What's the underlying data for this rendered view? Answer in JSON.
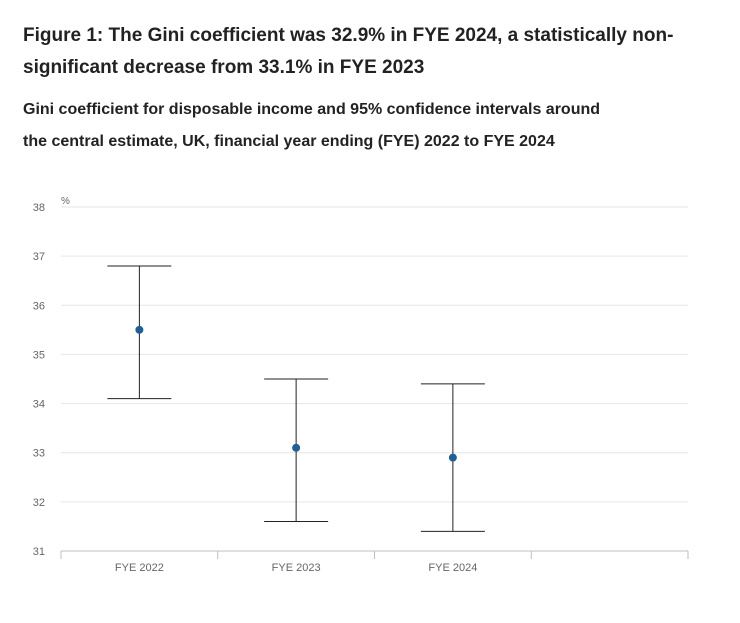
{
  "title": "Figure 1: The Gini coefficient was 32.9% in FYE 2024, a statistically non-significant decrease from 33.1% in FYE 2023",
  "subtitle": "Gini coefficient for disposable income and 95% confidence intervals around the central estimate, UK, financial year ending (FYE) 2022 to FYE 2024",
  "chart_data": {
    "type": "scatter",
    "title": "Figure 1: The Gini coefficient was 32.9% in FYE 2024, a statistically non-significant decrease from 33.1% in FYE 2023",
    "subtitle": "Gini coefficient for disposable income and 95% confidence intervals around the central estimate, UK, financial year ending (FYE) 2022 to FYE 2024",
    "categories": [
      "FYE 2022",
      "FYE 2023",
      "FYE 2024"
    ],
    "series": [
      {
        "values": [
          35.5,
          33.1,
          32.9
        ],
        "lower": [
          34.1,
          31.6,
          31.4
        ],
        "upper": [
          36.8,
          34.5,
          34.4
        ]
      }
    ],
    "ylabel": "%",
    "xlabel": "",
    "ylim": [
      31,
      38
    ],
    "yticks": [
      31,
      32,
      33,
      34,
      35,
      36,
      37,
      38
    ],
    "grid": true,
    "x_slots": 4,
    "point_color": "#206095",
    "errorbar_color": "#222222",
    "grid_color": "#e6e6e6",
    "axis_color": "#bfbfbf"
  }
}
